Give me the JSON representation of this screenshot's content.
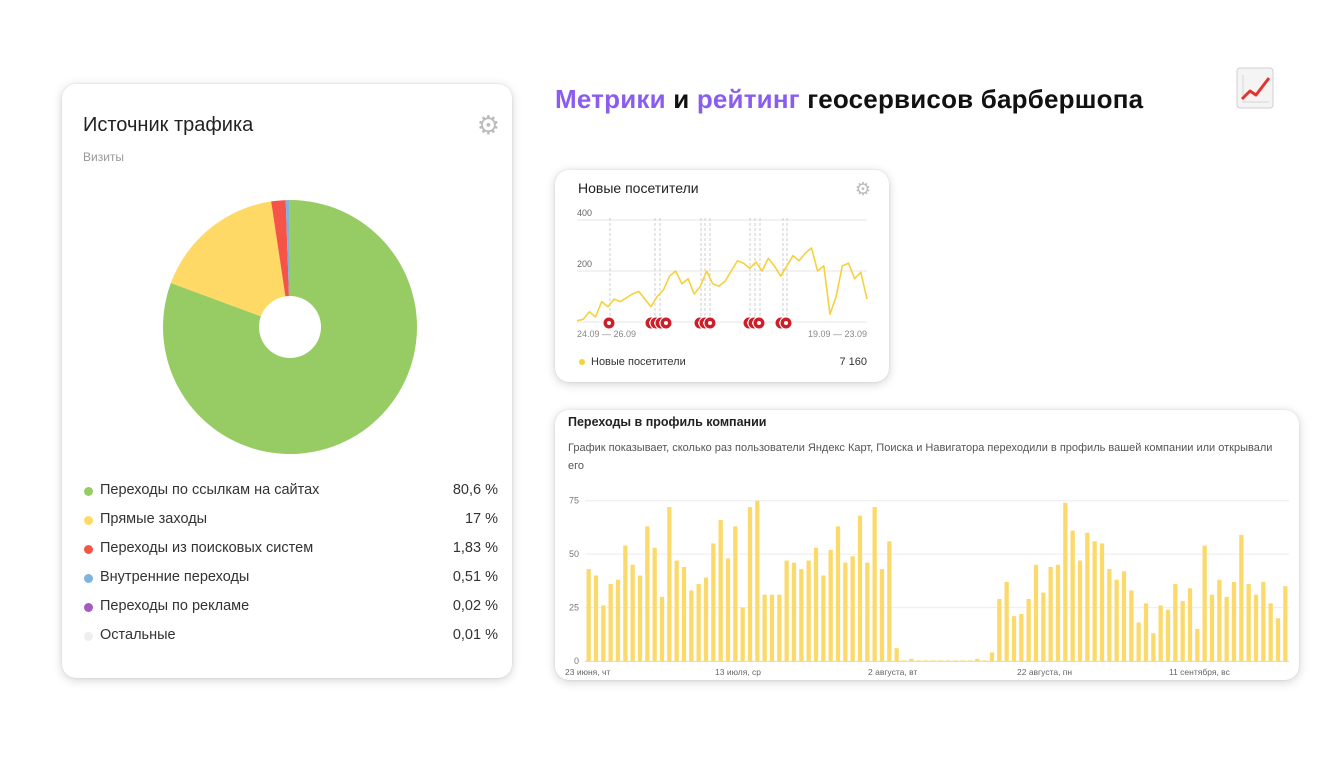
{
  "headline": {
    "part1": "Метрики",
    "part2": " и ",
    "part3": "рейтинг",
    "part4": " геосервисов барбершопа"
  },
  "icons": {
    "headline_emoji": "chart-increasing-icon",
    "settings": "gear-icon"
  },
  "traffic_card": {
    "title": "Источник трафика",
    "subtitle": "Визиты",
    "legend": [
      {
        "label": "Переходы по ссылкам на сайтах",
        "value": "80,6 %",
        "color": "#97cc64"
      },
      {
        "label": "Прямые заходы",
        "value": "17 %",
        "color": "#ffd966"
      },
      {
        "label": "Переходы из поисковых систем",
        "value": "1,83 %",
        "color": "#f55549"
      },
      {
        "label": "Внутренние переходы",
        "value": "0,51 %",
        "color": "#7fb2dd"
      },
      {
        "label": "Переходы по рекламе",
        "value": "0,02 %",
        "color": "#a25bc0"
      },
      {
        "label": "Остальные",
        "value": "0,01 %",
        "color": "#eeeeee"
      }
    ]
  },
  "visitors_card": {
    "title": "Новые посетители",
    "legend_label": "Новые посетители",
    "legend_value": "7 160",
    "line_color": "#f5d13c"
  },
  "profile_card": {
    "title": "Переходы в профиль компании",
    "description": "График показывает, сколько раз пользователи Яндекс Карт, Поиска и Навигатора переходили в профиль вашей компании или открывали его",
    "bar_color": "#fbd96a"
  },
  "chart_data": [
    {
      "type": "pie",
      "title": "Источник трафика",
      "subtitle": "Визиты",
      "categories": [
        "Переходы по ссылкам на сайтах",
        "Прямые заходы",
        "Переходы из поисковых систем",
        "Внутренние переходы",
        "Переходы по рекламе",
        "Остальные"
      ],
      "values": [
        80.6,
        17,
        1.83,
        0.51,
        0.02,
        0.01
      ],
      "colors": [
        "#97cc64",
        "#ffd966",
        "#f55549",
        "#7fb2dd",
        "#a25bc0",
        "#eeeeee"
      ],
      "legend": "bottom"
    },
    {
      "type": "line",
      "title": "Новые посетители",
      "ylim": [
        0,
        400
      ],
      "yticks": [
        200,
        400
      ],
      "xtick_labels": [
        "24.09 — 26.09",
        "19.09 — 23.09"
      ],
      "series": [
        {
          "name": "Новые посетители",
          "total": "7 160",
          "values": [
            5,
            10,
            40,
            20,
            80,
            60,
            90,
            80,
            95,
            110,
            120,
            90,
            60,
            100,
            125,
            180,
            200,
            150,
            170,
            110,
            140,
            200,
            150,
            140,
            160,
            200,
            240,
            230,
            210,
            235,
            200,
            250,
            220,
            180,
            220,
            260,
            240,
            270,
            290,
            200,
            220,
            30,
            100,
            220,
            230,
            170,
            195,
            90
          ]
        }
      ],
      "grid": true
    },
    {
      "type": "bar",
      "title": "Переходы в профиль компании",
      "ylim": [
        0,
        80
      ],
      "yticks": [
        0,
        25,
        50,
        75
      ],
      "xtick_labels": [
        "23 июня, чт",
        "13 июля, ср",
        "2 августа, вт",
        "22 августа, пн",
        "11 сентября, вс"
      ],
      "series": [
        {
          "name": "",
          "values": [
            43,
            40,
            26,
            36,
            38,
            54,
            45,
            40,
            63,
            53,
            30,
            72,
            47,
            44,
            33,
            36,
            39,
            55,
            66,
            48,
            63,
            25,
            72,
            75,
            31,
            31,
            31,
            47,
            46,
            43,
            47,
            53,
            40,
            52,
            63,
            46,
            49,
            68,
            46,
            72,
            43,
            56,
            6,
            0,
            1,
            0,
            0,
            0,
            0,
            0,
            0,
            0,
            0,
            1,
            0,
            4,
            29,
            37,
            21,
            22,
            29,
            45,
            32,
            44,
            45,
            74,
            61,
            47,
            60,
            56,
            55,
            43,
            38,
            42,
            33,
            18,
            27,
            13,
            26,
            24,
            36,
            28,
            34,
            15,
            54,
            31,
            38,
            30,
            37,
            59,
            36,
            31,
            37,
            27,
            20,
            35
          ]
        }
      ],
      "grid": true
    }
  ]
}
